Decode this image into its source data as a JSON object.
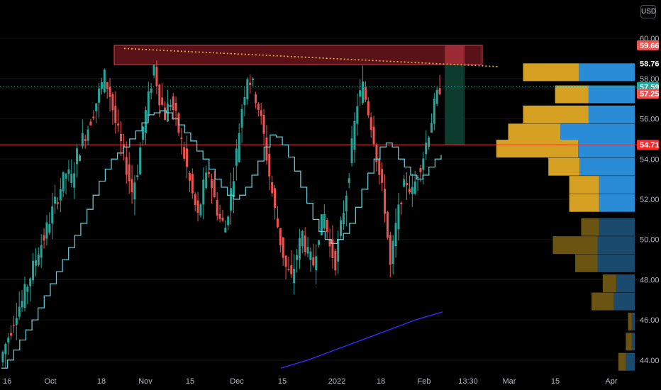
{
  "currency": "USD",
  "colors": {
    "background": "#000000",
    "up": "#26a69a",
    "down": "#ef5350",
    "ma": "#5fc7d6",
    "ma2": "#2b2ff0",
    "resistance_line": "#e8a33a",
    "zone": "#a3202b",
    "horizontal_line": "#ff2b2b",
    "vp_buy": "#d6a023",
    "vp_sell": "#2a8bd6",
    "vp_buy_dim": "#6b5312",
    "vp_sell_dim": "#1a4a6e",
    "target_box": "#0d3b2e"
  },
  "chart_data": {
    "type": "candlestick",
    "title": "",
    "x_tick_labels": [
      "16",
      "Oct",
      "18",
      "Nov",
      "15",
      "Dec",
      "15",
      "2022",
      "18",
      "Feb",
      "13:30",
      "Mar",
      "15",
      "Apr"
    ],
    "y_tick_labels": [
      "44.00",
      "46.00",
      "48.00",
      "50.00",
      "52.00",
      "54.00",
      "56.00",
      "58.00",
      "60.00"
    ],
    "ylim": [
      43.5,
      60.5
    ],
    "price_tags": [
      {
        "label": "59.66",
        "value": 59.66,
        "color": "#ef5350"
      },
      {
        "label": "58.76",
        "value": 58.76,
        "color": "#000000"
      },
      {
        "label": "57.59",
        "value": 57.59,
        "color": "#26a69a"
      },
      {
        "label": "57.25",
        "value": 57.25,
        "color": "#ef5350"
      },
      {
        "label": "54.71",
        "value": 54.71,
        "color": "#ff2b2b"
      }
    ],
    "horizontal_line_value": 54.71,
    "dotted_last_price": 57.59,
    "resistance_zone": {
      "low": 58.7,
      "high": 59.66
    },
    "target_zone": {
      "low": 54.71,
      "high": 58.7
    },
    "trendline_values": [
      59.5,
      58.6
    ],
    "price_series": [
      43.9,
      44.8,
      45.6,
      46.5,
      46.9,
      47.8,
      48.6,
      49.5,
      50.1,
      51.0,
      51.8,
      52.6,
      53.3,
      53.0,
      54.2,
      55.0,
      55.6,
      56.4,
      57.3,
      58.1,
      57.2,
      55.8,
      54.7,
      53.6,
      52.4,
      53.5,
      55.6,
      57.0,
      58.6,
      57.1,
      56.2,
      56.9,
      56.0,
      54.8,
      53.5,
      52.2,
      51.1,
      52.6,
      53.4,
      52.0,
      51.0,
      50.6,
      52.4,
      54.3,
      56.6,
      58.2,
      57.6,
      56.6,
      55.1,
      53.2,
      51.4,
      49.9,
      48.6,
      48.0,
      49.3,
      50.3,
      49.2,
      48.8,
      50.4,
      51.2,
      49.6,
      48.9,
      50.6,
      52.4,
      54.6,
      56.8,
      57.6,
      56.4,
      55.1,
      53.2,
      51.6,
      48.6,
      50.6,
      52.2,
      52.9,
      52.3,
      53.4,
      54.2,
      55.4,
      56.6,
      57.6
    ],
    "ma_series": [
      43.6,
      44.0,
      44.5,
      45.0,
      45.5,
      46.0,
      46.6,
      47.2,
      47.8,
      48.4,
      49.0,
      49.6,
      50.2,
      50.8,
      51.5,
      52.2,
      52.9,
      53.5,
      54.0,
      54.3,
      54.6,
      55.0,
      55.4,
      55.8,
      56.2,
      56.3,
      56.4,
      56.3,
      56.0,
      55.7,
      55.3,
      54.9,
      54.4,
      54.0,
      53.5,
      53.0,
      52.6,
      52.2,
      52.0,
      52.2,
      52.6,
      53.2,
      53.9,
      54.6,
      55.2,
      55.1,
      54.7,
      54.1,
      53.4,
      52.6,
      51.8,
      51.0,
      50.4,
      50.0,
      49.8,
      50.0,
      50.3,
      50.8,
      51.6,
      52.5,
      53.3,
      54.0,
      54.6,
      54.8,
      54.6,
      54.0,
      53.6,
      53.2,
      53.0,
      53.2,
      53.6,
      54.0,
      54.2
    ],
    "ma2_series": [
      43.6,
      44.0,
      44.5,
      45.0,
      45.5,
      46.0,
      46.4
    ],
    "volume_profile": [
      {
        "price": 58.3,
        "buy": 75,
        "sell": 75,
        "active": true
      },
      {
        "price": 57.2,
        "buy": 45,
        "sell": 62,
        "active": true
      },
      {
        "price": 56.2,
        "buy": 88,
        "sell": 62,
        "active": true
      },
      {
        "price": 55.3,
        "buy": 70,
        "sell": 100,
        "active": true
      },
      {
        "price": 54.5,
        "buy": 110,
        "sell": 76,
        "active": true
      },
      {
        "price": 53.6,
        "buy": 42,
        "sell": 74,
        "active": true
      },
      {
        "price": 52.7,
        "buy": 40,
        "sell": 48,
        "active": true
      },
      {
        "price": 51.8,
        "buy": 40,
        "sell": 48,
        "active": true
      },
      {
        "price": 50.6,
        "buy": 24,
        "sell": 48,
        "active": false
      },
      {
        "price": 49.7,
        "buy": 60,
        "sell": 50,
        "active": false
      },
      {
        "price": 48.8,
        "buy": 30,
        "sell": 50,
        "active": false
      },
      {
        "price": 47.8,
        "buy": 18,
        "sell": 25,
        "active": false
      },
      {
        "price": 46.9,
        "buy": 30,
        "sell": 28,
        "active": false
      },
      {
        "price": 45.9,
        "buy": 5,
        "sell": 4,
        "active": false
      },
      {
        "price": 44.9,
        "buy": 8,
        "sell": 4,
        "active": false
      },
      {
        "price": 43.9,
        "buy": 10,
        "sell": 12,
        "active": false
      }
    ]
  }
}
